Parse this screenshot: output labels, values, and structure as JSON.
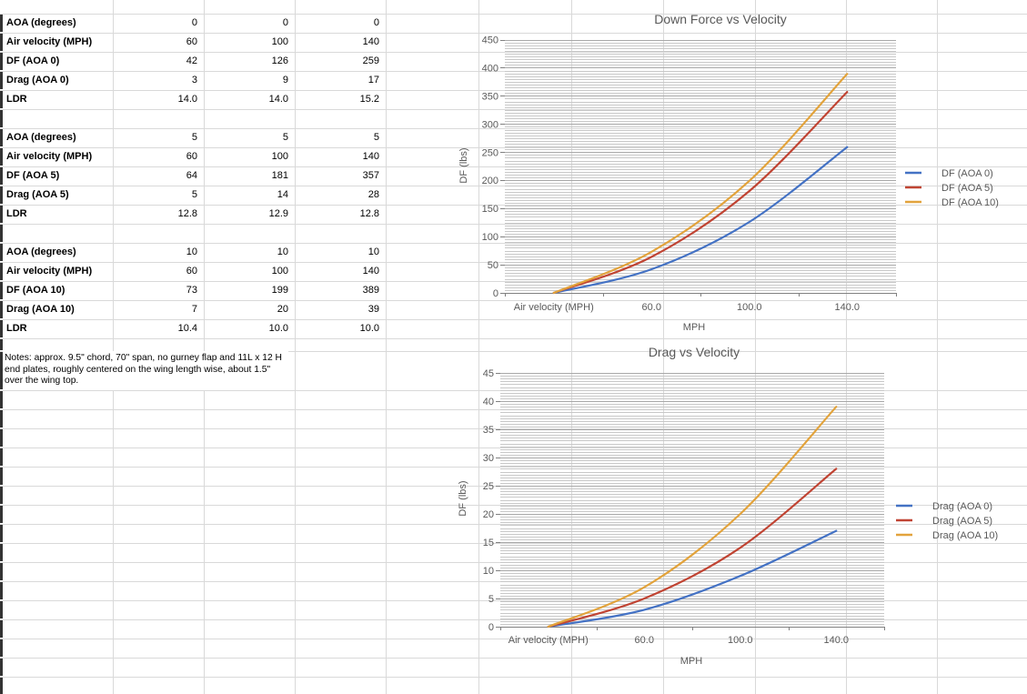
{
  "app": {
    "kind": "spreadsheet-with-charts"
  },
  "tables": [
    {
      "rows": [
        {
          "label": "AOA (degrees)",
          "values": [
            "0",
            "0",
            "0"
          ]
        },
        {
          "label": "Air velocity (MPH)",
          "values": [
            "60",
            "100",
            "140"
          ]
        },
        {
          "label": "DF (AOA 0)",
          "values": [
            "42",
            "126",
            "259"
          ]
        },
        {
          "label": "Drag (AOA 0)",
          "values": [
            "3",
            "9",
            "17"
          ]
        },
        {
          "label": "LDR",
          "values": [
            "14.0",
            "14.0",
            "15.2"
          ]
        }
      ]
    },
    {
      "rows": [
        {
          "label": "AOA (degrees)",
          "values": [
            "5",
            "5",
            "5"
          ]
        },
        {
          "label": "Air velocity (MPH)",
          "values": [
            "60",
            "100",
            "140"
          ]
        },
        {
          "label": "DF (AOA 5)",
          "values": [
            "64",
            "181",
            "357"
          ]
        },
        {
          "label": "Drag (AOA 5)",
          "values": [
            "5",
            "14",
            "28"
          ]
        },
        {
          "label": "LDR",
          "values": [
            "12.8",
            "12.9",
            "12.8"
          ]
        }
      ]
    },
    {
      "rows": [
        {
          "label": "AOA (degrees)",
          "values": [
            "10",
            "10",
            "10"
          ]
        },
        {
          "label": "Air velocity (MPH)",
          "values": [
            "60",
            "100",
            "140"
          ]
        },
        {
          "label": "DF (AOA 10)",
          "values": [
            "73",
            "199",
            "389"
          ]
        },
        {
          "label": "Drag (AOA 10)",
          "values": [
            "7",
            "20",
            "39"
          ]
        },
        {
          "label": "LDR",
          "values": [
            "10.4",
            "10.0",
            "10.0"
          ]
        }
      ]
    }
  ],
  "notes": "Notes: approx. 9.5\" chord, 70\" span, no gurney flap and 11L x 12 H end plates, roughly centered on the wing length wise, about 1.5\" over the wing top.",
  "chart_data": [
    {
      "type": "line",
      "title": "Down Force vs Velocity",
      "categories": [
        "Air velocity (MPH)",
        "60.0",
        "100.0",
        "140.0"
      ],
      "series": [
        {
          "name": "DF (AOA 0)",
          "color": "#4472C4",
          "values": [
            0,
            42,
            126,
            259
          ]
        },
        {
          "name": "DF (AOA 5)",
          "color": "#C04433",
          "values": [
            0,
            64,
            181,
            357
          ]
        },
        {
          "name": "DF (AOA 10)",
          "color": "#E2A33C",
          "values": [
            0,
            73,
            199,
            389
          ]
        }
      ],
      "xlabel": "MPH",
      "ylabel": "DF (lbs)",
      "ylim": [
        0,
        450
      ],
      "ytick_major": 50,
      "ytick_minor": 5,
      "legend_position": "right",
      "grid": "dense horizontal minor gridlines"
    },
    {
      "type": "line",
      "title": "Drag vs Velocity",
      "categories": [
        "Air velocity (MPH)",
        "60.0",
        "100.0",
        "140.0"
      ],
      "series": [
        {
          "name": "Drag (AOA 0)",
          "color": "#4472C4",
          "values": [
            0,
            3,
            9,
            17
          ]
        },
        {
          "name": "Drag (AOA 5)",
          "color": "#C04433",
          "values": [
            0,
            5,
            14,
            28
          ]
        },
        {
          "name": "Drag (AOA 10)",
          "color": "#E2A33C",
          "values": [
            0,
            7,
            20,
            39
          ]
        }
      ],
      "xlabel": "MPH",
      "ylabel": "DF (lbs)",
      "ylim": [
        0,
        45
      ],
      "ytick_major": 5,
      "ytick_minor": 0.5,
      "legend_position": "right",
      "grid": "dense horizontal minor gridlines"
    }
  ],
  "colors": {
    "series_blue": "#4472C4",
    "series_red": "#C04433",
    "series_orange": "#E2A33C",
    "chart_text": "#595959",
    "grid_minor": "#c8c8c8",
    "grid_major": "#a8a8a8",
    "sheet_grid": "#d9d9d9",
    "axis": "#808080",
    "left_bar": "#333333"
  }
}
